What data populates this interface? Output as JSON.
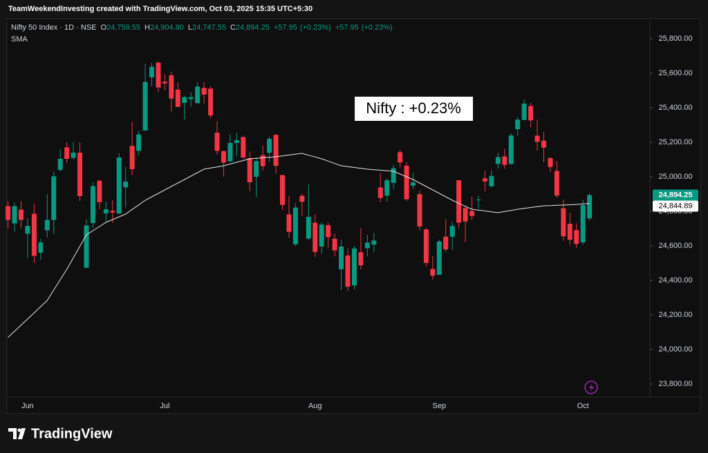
{
  "chart_data": {
    "type": "candlestick",
    "header": "TeamWeekendInvesting created with TradingView.com, Oct 03, 2025 15:35 UTC+5:30",
    "symbol": "Nifty 50 Index · 1D · NSE",
    "legend_values": [
      {
        "key": "O",
        "value": 24759.55,
        "label": "24,759.55"
      },
      {
        "key": "H",
        "value": 24904.8,
        "label": "24,904.80"
      },
      {
        "key": "L",
        "value": 24747.55,
        "label": "24,747.55"
      },
      {
        "key": "C",
        "value": 24894.25,
        "label": "24,894.25"
      }
    ],
    "change": {
      "value": 57.95,
      "label": "+57.95"
    },
    "change_pct": {
      "value": 0.23,
      "label": "(+0.23%)"
    },
    "annotation": "Nifty : +0.23%",
    "last_price": {
      "value": 24894.25,
      "label": "24,894.25"
    },
    "sma_last": {
      "value": 24844.89,
      "label": "24,844.89"
    },
    "brand": "TradingView",
    "up_color": "#089981",
    "down_color": "#f23645",
    "categories": [
      null,
      null,
      null,
      "Jun",
      null,
      null,
      null,
      null,
      null,
      null,
      null,
      null,
      null,
      null,
      null,
      null,
      null,
      null,
      null,
      null,
      null,
      null,
      null,
      null,
      "Jul",
      null,
      null,
      null,
      null,
      null,
      null,
      null,
      null,
      null,
      null,
      null,
      null,
      null,
      null,
      null,
      null,
      null,
      null,
      null,
      null,
      null,
      null,
      "Aug",
      null,
      null,
      null,
      null,
      null,
      null,
      null,
      null,
      null,
      null,
      null,
      null,
      null,
      null,
      null,
      null,
      null,
      null,
      "Sep",
      null,
      null,
      null,
      null,
      null,
      null,
      null,
      null,
      null,
      null,
      null,
      null,
      null,
      null,
      null,
      null,
      null,
      null,
      null,
      null,
      null,
      "Oct",
      null
    ],
    "open": [
      24830,
      24730,
      24810,
      24670,
      24786,
      24560,
      24690,
      24750,
      25040,
      25170,
      25110,
      25140,
      24473,
      24732,
      24977,
      24788,
      24803,
      24787,
      24939,
      25179,
      25150,
      25268,
      25576,
      25661,
      25551,
      25588,
      25505,
      25428,
      25450,
      25427,
      25515,
      25511,
      25255,
      25149,
      25089,
      25196,
      25230,
      25108,
      25000,
      25125,
      25139,
      25243,
      25010,
      24782,
      24609,
      24890,
      24642,
      24734,
      24596,
      24720,
      24641,
      24464,
      24544,
      24371,
      24563,
      24586,
      24607,
      24938,
      24891,
      24965,
      25142,
      25064,
      24949,
      24899,
      24695,
      24466,
      24432,
      24653,
      24653,
      24980,
      24819,
      24802,
      24864,
      24991,
      24945,
      25075,
      25118,
      25074,
      25276,
      25329,
      25410,
      25238,
      25209,
      25108,
      25034,
      24818,
      24728,
      24691,
      24620,
      24759
    ],
    "high": [
      24860,
      24850,
      24860,
      24760,
      24845,
      24640,
      24900,
      25030,
      25160,
      25200,
      25200,
      25200,
      24754,
      24967,
      24983,
      24856,
      24864,
      25136,
      25057,
      25318,
      25266,
      25654,
      25660,
      25669,
      25593,
      25608,
      25548,
      25470,
      25489,
      25548,
      25548,
      25525,
      25322,
      25151,
      25245,
      25255,
      25238,
      25145,
      25111,
      25182,
      25233,
      25247,
      25010,
      24889,
      24847,
      24902,
      24956,
      24784,
      24736,
      24734,
      24671,
      24634,
      24586,
      24600,
      24702,
      24664,
      24674,
      25022,
      24990,
      25069,
      25154,
      25084,
      25022,
      24919,
      24702,
      24541,
      24636,
      24756,
      24737,
      24980,
      24832,
      24885,
      24891,
      25035,
      25037,
      25139,
      25161,
      25251,
      25346,
      25448,
      25428,
      25331,
      25261,
      25116,
      25092,
      24868,
      24792,
      24731,
      24867,
      24904
    ],
    "low": [
      24700,
      24680,
      24700,
      24530,
      24500,
      24520,
      24650,
      24670,
      25030,
      25080,
      25100,
      24860,
      24473,
      24703,
      24813,
      24738,
      24733,
      24783,
      24825,
      25008,
      25125,
      25267,
      25523,
      25490,
      25501,
      25378,
      25405,
      25331,
      25407,
      25424,
      25424,
      25340,
      25129,
      25001,
      25089,
      25121,
      25101,
      24918,
      24882,
      25035,
      25085,
      25018,
      24807,
      24646,
      24598,
      24771,
      24635,
      24535,
      24554,
      24590,
      24539,
      24344,
      24337,
      24347,
      24463,
      24539,
      24563,
      24852,
      24856,
      24930,
      25054,
      24859,
      24929,
      24689,
      24481,
      24404,
      24432,
      24567,
      24577,
      24700,
      24621,
      24751,
      24815,
      24915,
      24940,
      25047,
      25046,
      25070,
      25237,
      25329,
      25286,
      25151,
      25084,
      25027,
      24878,
      24629,
      24606,
      24587,
      24605,
      24747
    ],
    "close": [
      24750,
      24830,
      24750,
      24716,
      24542,
      24620,
      24750,
      25003,
      25104,
      25104,
      25140,
      24888,
      24718,
      24946,
      24853,
      24812,
      24793,
      25112,
      24972,
      25044,
      25245,
      25549,
      25637,
      25517,
      25541,
      25453,
      25405,
      25461,
      25461,
      25523,
      25476,
      25355,
      25150,
      25082,
      25196,
      25212,
      25112,
      24968,
      25091,
      25061,
      25220,
      25063,
      24837,
      24681,
      24821,
      24855,
      24768,
      24565,
      24723,
      24650,
      24574,
      24596,
      24363,
      24585,
      24487,
      24619,
      24631,
      24877,
      24980,
      25050,
      25083,
      24870,
      24967,
      24712,
      24501,
      24427,
      24625,
      24579,
      24715,
      24734,
      24741,
      24773,
      24868,
      24973,
      25005,
      25114,
      25069,
      25239,
      25331,
      25424,
      25327,
      25202,
      25169,
      25057,
      24891,
      24655,
      24635,
      24611,
      24836,
      24894.25
    ],
    "series": [
      {
        "name": "SMA",
        "color": "#e6e6e6",
        "values": [
          24070,
          24105,
          24141,
          24176,
          24212,
          24248,
          24284,
          24344,
          24404,
          24464,
          24531,
          24597,
          24664,
          24688,
          24712,
          24736,
          24752,
          24768,
          24784,
          24811,
          24837,
          24864,
          24884,
          24904,
          24924,
          24944,
          24964,
          24984,
          25004,
          25024,
          25044,
          25051,
          25057,
          25064,
          25074,
          25084,
          25094,
          25104,
          25107,
          25110,
          25113,
          25116,
          25121,
          25126,
          25131,
          25136,
          25125,
          25115,
          25104,
          25091,
          25077,
          25064,
          25059,
          25054,
          25049,
          25044,
          25041,
          25038,
          25035,
          25032,
          25016,
          25000,
          24984,
          24964,
          24944,
          24924,
          24904,
          24884,
          24864,
          24847,
          24829,
          24812,
          24807,
          24802,
          24797,
          24792,
          24799,
          24805,
          24812,
          24817,
          24822,
          24827,
          24832,
          24833,
          24835,
          24836,
          24838,
          24840,
          24843,
          24844.89
        ]
      }
    ],
    "ylim": [
      23724,
      25912
    ],
    "yticks": [
      {
        "value": 23800,
        "label": "23,800.00"
      },
      {
        "value": 24000,
        "label": "24,000.00"
      },
      {
        "value": 24200,
        "label": "24,200.00"
      },
      {
        "value": 24400,
        "label": "24,400.00"
      },
      {
        "value": 24600,
        "label": "24,600.00"
      },
      {
        "value": 24800,
        "label": "24,800.00"
      },
      {
        "value": 25000,
        "label": "25,000.00"
      },
      {
        "value": 25200,
        "label": "25,200.00"
      },
      {
        "value": 25400,
        "label": "25,400.00"
      },
      {
        "value": 25600,
        "label": "25,600.00"
      },
      {
        "value": 25800,
        "label": "25,800.00"
      }
    ],
    "grid": false
  }
}
